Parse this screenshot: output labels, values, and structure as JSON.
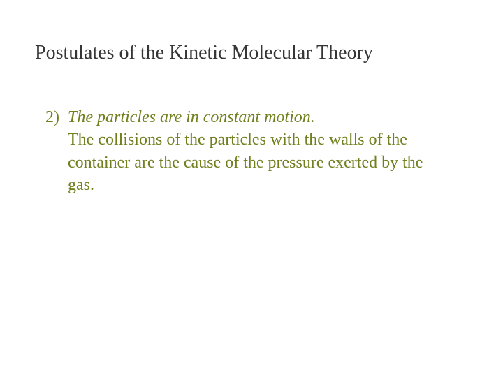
{
  "title": "Postulates of the Kinetic Molecular Theory",
  "item": {
    "number": "2)",
    "line1": "The particles are in constant motion.",
    "line2": "The collisions of the particles with the walls of the container are the cause of the pressure exerted by the gas."
  },
  "colors": {
    "title_color": "#353535",
    "body_color": "#717f1e",
    "background": "#ffffff"
  },
  "typography": {
    "title_fontsize": 28,
    "body_fontsize": 24,
    "font_family": "Georgia, Times New Roman, serif"
  }
}
